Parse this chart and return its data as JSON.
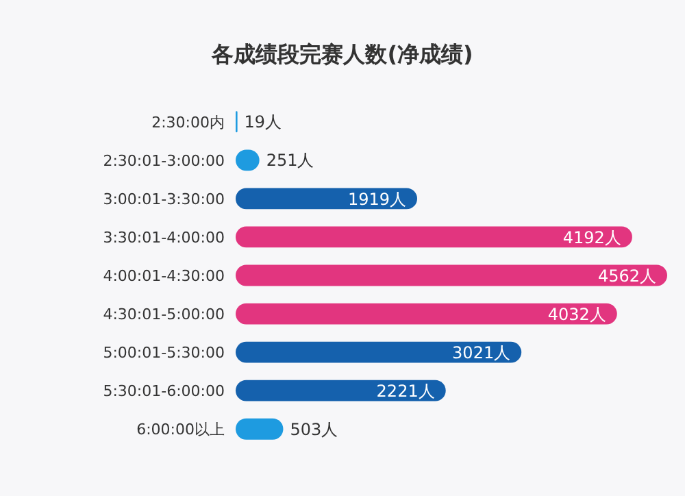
{
  "chart_data": {
    "type": "bar",
    "orientation": "horizontal",
    "title": "各成绩段完赛人数(净成绩)",
    "categories": [
      "2:30:00内",
      "2:30:01-3:00:00",
      "3:00:01-3:30:00",
      "3:30:01-4:00:00",
      "4:00:01-4:30:00",
      "4:30:01-5:00:00",
      "5:00:01-5:30:00",
      "5:30:01-6:00:00",
      "6:00:00以上"
    ],
    "values": [
      19,
      251,
      1919,
      4192,
      4562,
      4032,
      3021,
      2221,
      503
    ],
    "colors": [
      "#1e9be0",
      "#1e9be0",
      "#1561ad",
      "#e2357f",
      "#e2357f",
      "#e2357f",
      "#1561ad",
      "#1561ad",
      "#1e9be0"
    ],
    "value_labels": [
      "19人",
      "251人",
      "1919人",
      "4192人",
      "4562人",
      "4032人",
      "3021人",
      "2221人",
      "503人"
    ],
    "grid": false
  }
}
